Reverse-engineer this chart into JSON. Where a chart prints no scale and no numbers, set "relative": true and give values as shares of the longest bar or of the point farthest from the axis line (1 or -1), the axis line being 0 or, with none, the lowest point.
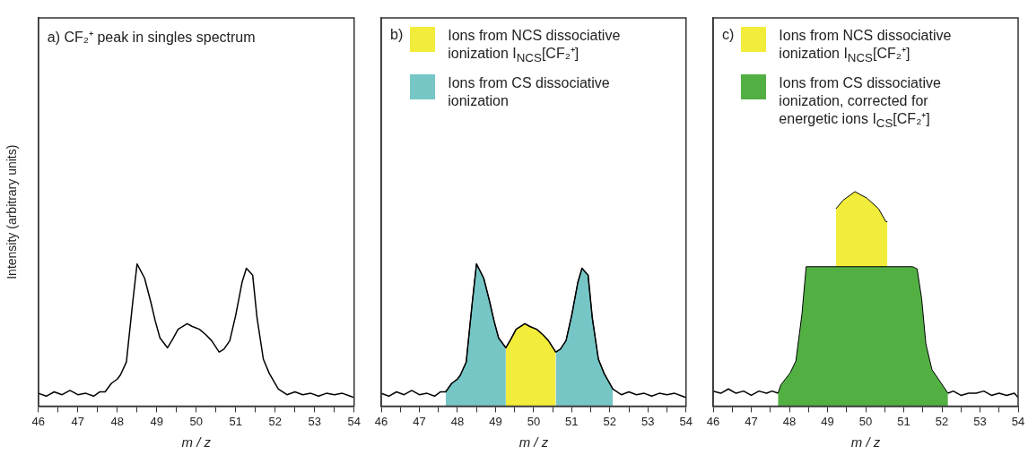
{
  "chart_data": [
    {
      "type": "line",
      "title": "a) CF₂⁺ peak in singles spectrum",
      "xlabel": "m / z",
      "ylabel": "Intensity (arbitrary units)",
      "relative": true,
      "xlim": [
        46,
        54
      ],
      "xticks": [
        46,
        {
          "value": 46.5,
          "label": null
        },
        47,
        {
          "value": 47.5,
          "label": null
        },
        48,
        {
          "value": 48.5,
          "label": null
        },
        49,
        {
          "value": 49.5,
          "label": null
        },
        50,
        {
          "value": 50.5,
          "label": null
        },
        51,
        {
          "value": 51.5,
          "label": null
        },
        52,
        {
          "value": 52.5,
          "label": null
        },
        53,
        {
          "value": 53.5,
          "label": null
        },
        54
      ],
      "marker": "none",
      "legend": false,
      "grid": false,
      "series": [
        {
          "color": "#000000",
          "x": [
            46.0,
            46.2,
            46.4,
            46.6,
            46.8,
            47.0,
            47.2,
            47.4,
            47.55,
            47.69,
            47.85,
            48.0,
            48.08,
            48.23,
            48.39,
            48.5,
            48.69,
            48.85,
            48.96,
            49.08,
            49.27,
            49.4,
            49.54,
            49.77,
            49.9,
            50.08,
            50.25,
            50.39,
            50.58,
            50.7,
            50.85,
            51.0,
            51.16,
            51.27,
            51.43,
            51.54,
            51.7,
            51.85,
            52.08,
            52.3,
            52.5,
            52.7,
            52.9,
            53.1,
            53.3,
            53.5,
            53.7,
            53.9,
            54.0
          ],
          "values": [
            0.09,
            0.07,
            0.1,
            0.08,
            0.11,
            0.08,
            0.09,
            0.07,
            0.1,
            0.1,
            0.16,
            0.19,
            0.22,
            0.31,
            0.73,
            1.0,
            0.9,
            0.73,
            0.6,
            0.48,
            0.41,
            0.47,
            0.54,
            0.58,
            0.56,
            0.54,
            0.5,
            0.46,
            0.38,
            0.4,
            0.46,
            0.64,
            0.87,
            0.97,
            0.92,
            0.62,
            0.33,
            0.23,
            0.12,
            0.08,
            0.1,
            0.08,
            0.09,
            0.07,
            0.09,
            0.08,
            0.09,
            0.07,
            0.06
          ]
        }
      ]
    },
    {
      "type": "line",
      "title": "b)",
      "xlabel": "m / z",
      "relative": true,
      "xlim": [
        46,
        54
      ],
      "xticks": [
        46,
        {
          "value": 46.5,
          "label": null
        },
        47,
        {
          "value": 47.5,
          "label": null
        },
        48,
        {
          "value": 48.5,
          "label": null
        },
        49,
        {
          "value": 49.5,
          "label": null
        },
        50,
        {
          "value": 50.5,
          "label": null
        },
        51,
        {
          "value": 51.5,
          "label": null
        },
        52,
        {
          "value": 52.5,
          "label": null
        },
        53,
        {
          "value": 53.5,
          "label": null
        },
        54
      ],
      "marker": "none",
      "legend": "top left",
      "grid": false,
      "series": [
        {
          "type": "area",
          "name": "Ions from NCS dissociative ionization I$_{NCS}$[CF₂⁺]",
          "color": "#f2ec3a",
          "x": [
            49.27,
            49.4,
            49.54,
            49.77,
            49.9,
            50.08,
            50.25,
            50.39,
            50.58
          ],
          "values": [
            0.41,
            0.47,
            0.54,
            0.58,
            0.56,
            0.54,
            0.5,
            0.46,
            0.38
          ]
        },
        {
          "type": "area",
          "name": "Ions from CS dissociative ionization",
          "color": "#76c6c6",
          "x": [
            47.69,
            47.85,
            48.0,
            48.08,
            48.23,
            48.39,
            48.5,
            48.69,
            48.85,
            48.96,
            49.08,
            49.27,
            49.9,
            50.58,
            50.7,
            50.85,
            51.0,
            51.16,
            51.27,
            51.43,
            51.54,
            51.7,
            51.85,
            52.08
          ],
          "values": [
            0.1,
            0.16,
            0.19,
            0.22,
            0.31,
            0.73,
            1.0,
            0.9,
            0.73,
            0.6,
            0.48,
            0.41,
            null,
            0.38,
            0.4,
            0.46,
            0.64,
            0.87,
            0.97,
            0.92,
            0.62,
            0.33,
            0.23,
            0.12
          ]
        },
        {
          "color": "#000000",
          "x": [
            46.0,
            46.2,
            46.4,
            46.6,
            46.8,
            47.0,
            47.2,
            47.4,
            47.55,
            47.69,
            47.85,
            48.0,
            48.08,
            48.23,
            48.39,
            48.5,
            48.69,
            48.85,
            48.96,
            49.08,
            49.27,
            49.4,
            49.54,
            49.77,
            49.9,
            50.08,
            50.25,
            50.39,
            50.58,
            50.7,
            50.85,
            51.0,
            51.16,
            51.27,
            51.43,
            51.54,
            51.7,
            51.85,
            52.08,
            52.3,
            52.5,
            52.7,
            52.9,
            53.1,
            53.3,
            53.5,
            53.7,
            53.9,
            54.0
          ],
          "values": [
            0.09,
            0.07,
            0.1,
            0.08,
            0.11,
            0.08,
            0.09,
            0.07,
            0.1,
            0.1,
            0.16,
            0.19,
            0.22,
            0.31,
            0.73,
            1.0,
            0.9,
            0.73,
            0.6,
            0.48,
            0.41,
            0.47,
            0.54,
            0.58,
            0.56,
            0.54,
            0.5,
            0.46,
            0.38,
            0.4,
            0.46,
            0.64,
            0.87,
            0.97,
            0.92,
            0.62,
            0.33,
            0.23,
            0.12,
            0.08,
            0.1,
            0.08,
            0.09,
            0.07,
            0.09,
            0.08,
            0.09,
            0.07,
            0.06
          ]
        }
      ]
    },
    {
      "type": "line",
      "title": "c)",
      "xlabel": "m / z",
      "relative": true,
      "xlim": [
        46,
        54
      ],
      "xticks": [
        46,
        {
          "value": 46.5,
          "label": null
        },
        47,
        {
          "value": 47.5,
          "label": null
        },
        48,
        {
          "value": 48.5,
          "label": null
        },
        49,
        {
          "value": 49.5,
          "label": null
        },
        50,
        {
          "value": 50.5,
          "label": null
        },
        51,
        {
          "value": 51.5,
          "label": null
        },
        52,
        {
          "value": 52.5,
          "label": null
        },
        53,
        {
          "value": 53.5,
          "label": null
        },
        54
      ],
      "marker": "none",
      "legend": "top left",
      "grid": false,
      "series": [
        {
          "type": "area",
          "name": "Ions from NCS dissociative ionization I$_{NCS}$[CF₂⁺]",
          "color": "#f2ec3a",
          "x": [
            49.22,
            49.41,
            49.72,
            50.03,
            50.34,
            50.53,
            50.57
          ],
          "values": [
            0.92,
            0.96,
            1.0,
            0.97,
            0.92,
            0.86,
            0.86
          ]
        },
        {
          "type": "area",
          "name": "Ions from CS dissociative ionization, corrected for energetic ions I$_{CS}$[CF₂⁺]",
          "color": "#52b043",
          "x": [
            47.7,
            47.78,
            48.02,
            48.17,
            48.33,
            48.44,
            51.23,
            51.35,
            51.47,
            51.58,
            51.74,
            51.97,
            52.16
          ],
          "values": [
            0.06,
            0.1,
            0.155,
            0.21,
            0.43,
            0.65,
            0.65,
            0.64,
            0.5,
            0.29,
            0.17,
            0.11,
            0.06
          ]
        },
        {
          "color": "#000000",
          "x": [
            46.0,
            46.2,
            46.4,
            46.6,
            46.8,
            47.0,
            47.2,
            47.4,
            47.55,
            47.7,
            50.0,
            52.16,
            52.3,
            52.5,
            52.7,
            52.9,
            53.1,
            53.3,
            53.5,
            53.7,
            53.9,
            54.0
          ],
          "values": [
            0.07,
            0.06,
            0.08,
            0.06,
            0.07,
            0.05,
            0.07,
            0.06,
            0.07,
            0.06,
            null,
            0.06,
            0.07,
            0.05,
            0.06,
            0.06,
            0.07,
            0.05,
            0.06,
            0.05,
            0.06,
            0.04
          ]
        }
      ]
    }
  ]
}
